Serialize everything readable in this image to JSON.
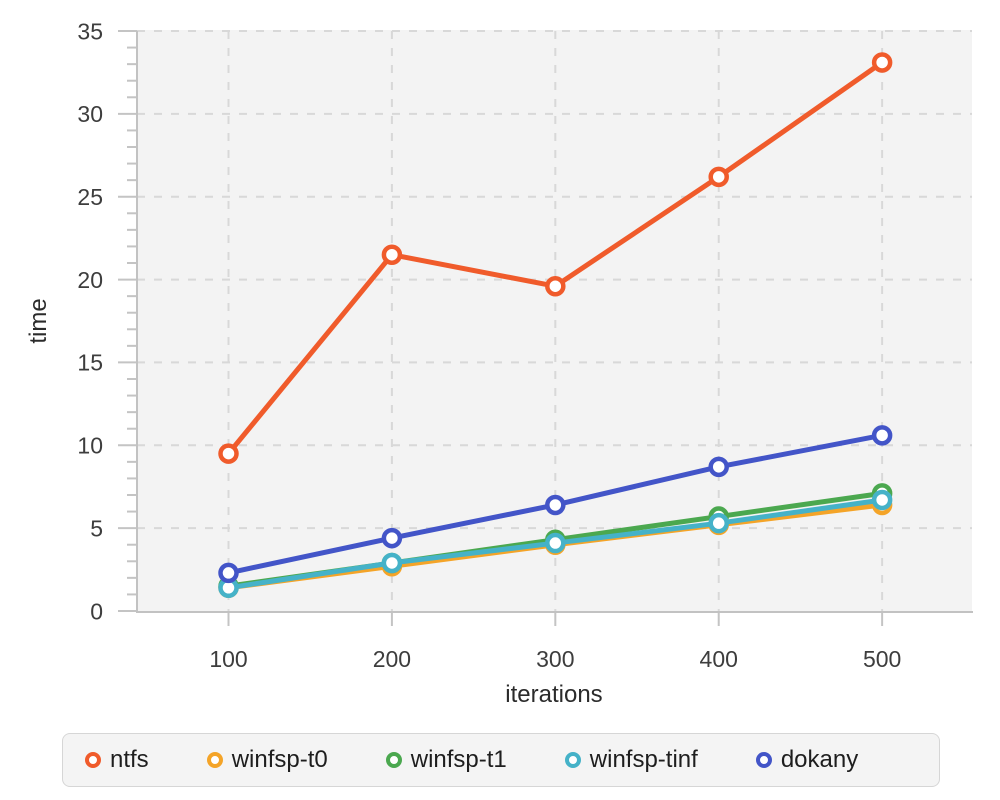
{
  "chart_data": {
    "type": "line",
    "title": "",
    "xlabel": "iterations",
    "ylabel": "time",
    "categories": [
      100,
      200,
      300,
      400,
      500
    ],
    "xlim": [
      44,
      555
    ],
    "ylim": [
      0,
      35
    ],
    "y_ticks": [
      0,
      5,
      10,
      15,
      20,
      25,
      30,
      35
    ],
    "y_minor_step": 1,
    "grid": "dashed",
    "legend_position": "bottom",
    "series": [
      {
        "name": "ntfs",
        "color": "#f05b2b",
        "values": [
          9.5,
          21.5,
          19.6,
          26.2,
          33.1
        ]
      },
      {
        "name": "winfsp-t0",
        "color": "#f4a428",
        "values": [
          1.4,
          2.7,
          4.0,
          5.2,
          6.4
        ]
      },
      {
        "name": "winfsp-t1",
        "color": "#4ba84f",
        "values": [
          1.5,
          2.9,
          4.3,
          5.7,
          7.1
        ]
      },
      {
        "name": "winfsp-tinf",
        "color": "#45b2c8",
        "values": [
          1.4,
          2.9,
          4.1,
          5.3,
          6.7
        ]
      },
      {
        "name": "dokany",
        "color": "#4355c8",
        "values": [
          2.3,
          4.4,
          6.4,
          8.7,
          10.6
        ]
      }
    ]
  },
  "style": {
    "plot_background": "#f3f3f3",
    "gridline_color": "#d8d8d8",
    "axis_spine_color": "#c2c2c2",
    "tick_color": "#c4c4c4",
    "marker_fill": "#ffffff",
    "legend_background": "#f4f4f4",
    "legend_border": "#d6d6d6"
  }
}
